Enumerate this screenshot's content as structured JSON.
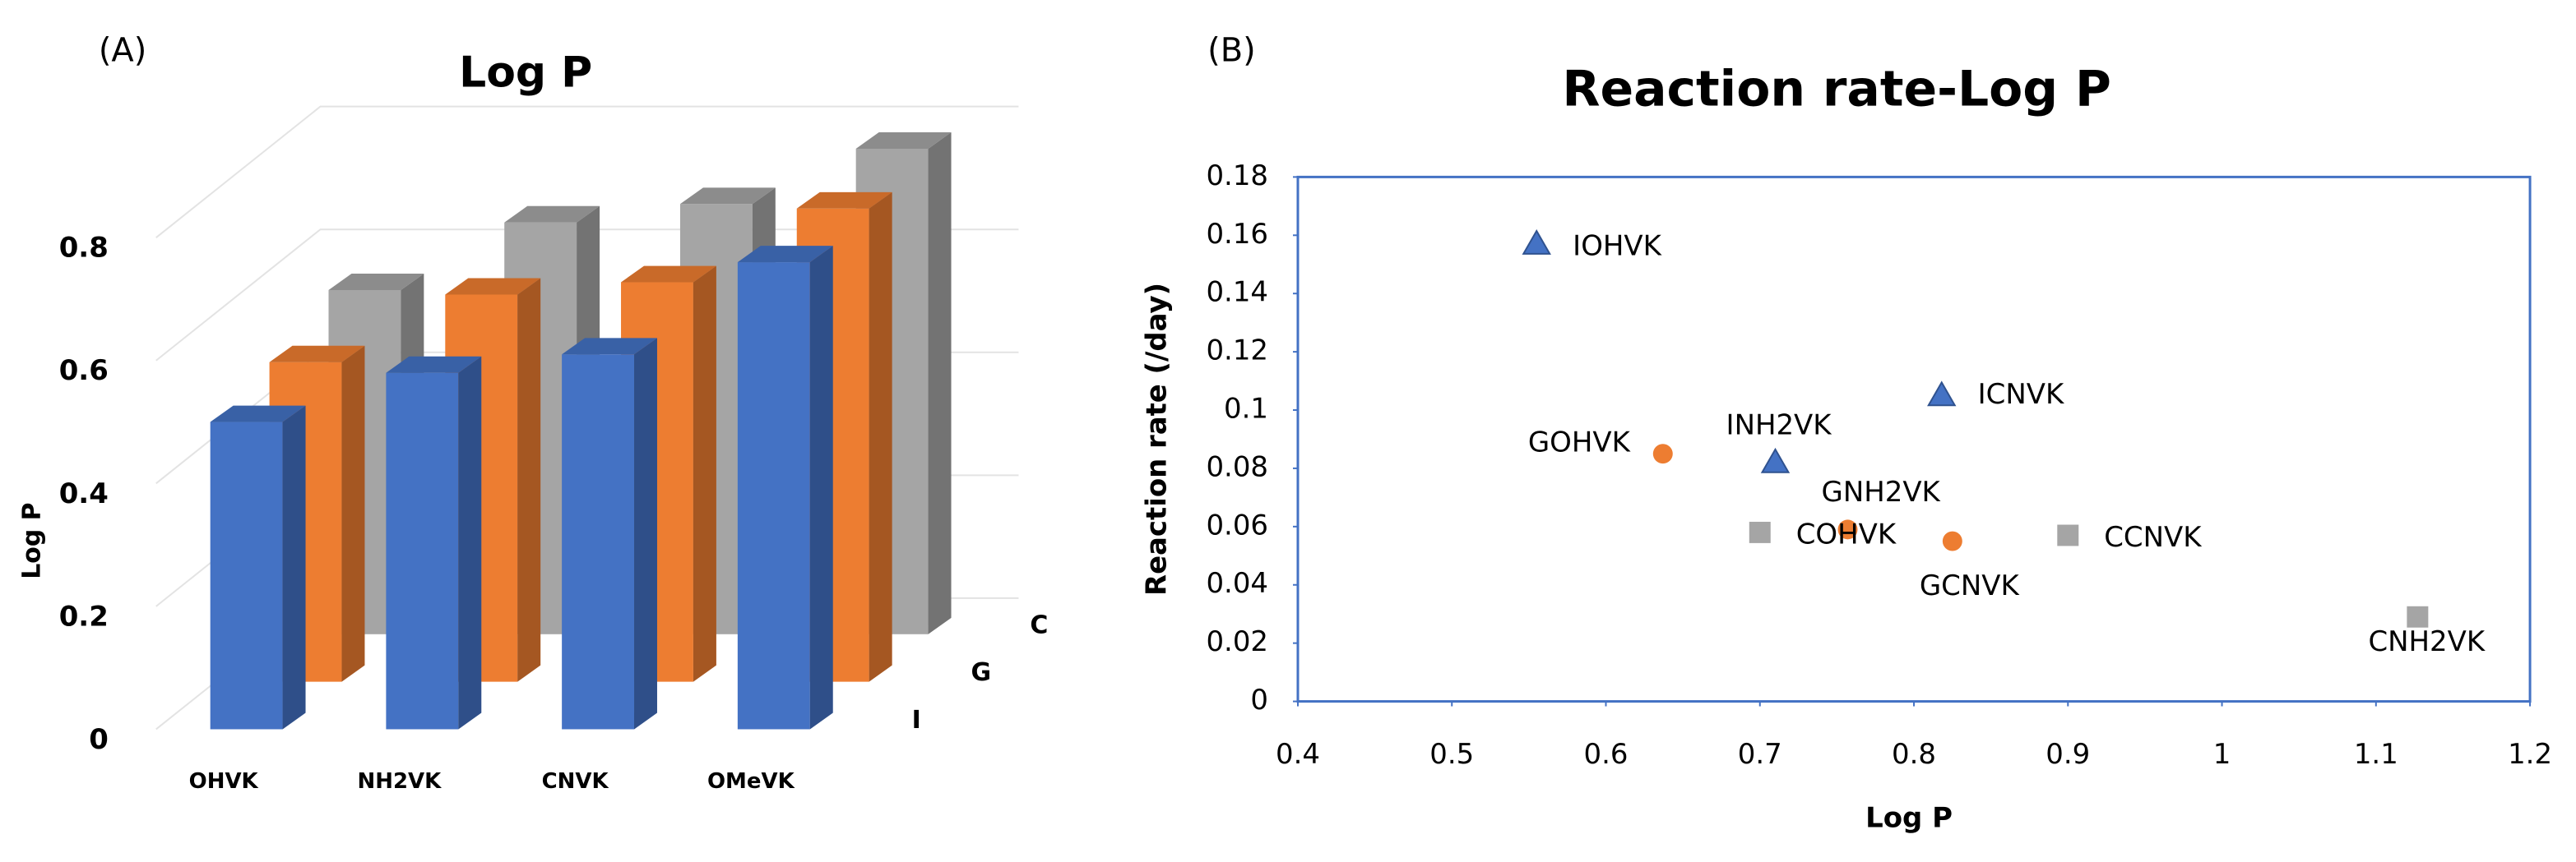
{
  "chart_data": [
    {
      "type": "bar3d",
      "panel": "(A)",
      "title": "Log P",
      "ylabel": "Log P",
      "categories": [
        "OHVK",
        "NH2VK",
        "CNVK",
        "OMeVK"
      ],
      "series": [
        {
          "name": "I",
          "color": "#4472c4",
          "values": [
            0.5,
            0.58,
            0.61,
            0.76
          ]
        },
        {
          "name": "G",
          "color": "#ed7d31",
          "values": [
            0.52,
            0.63,
            0.65,
            0.77
          ]
        },
        {
          "name": "C",
          "color": "#a5a5a5",
          "values": [
            0.56,
            0.67,
            0.7,
            0.79
          ]
        }
      ],
      "ylim": [
        0,
        0.8
      ],
      "yticks": [
        0,
        0.2,
        0.4,
        0.6,
        0.8
      ],
      "grid": true
    },
    {
      "type": "scatter",
      "panel": "(B)",
      "title": "Reaction rate-Log P",
      "xlabel": "Log P",
      "ylabel": "Reaction rate (/day)",
      "series": [
        {
          "name": "I",
          "color": "#4472c4",
          "marker": "triangle",
          "labels": [
            "IOHVK",
            "INH2VK",
            "ICNVK"
          ],
          "x": [
            0.555,
            0.71,
            0.818
          ],
          "values": [
            0.157,
            0.082,
            0.105
          ]
        },
        {
          "name": "G",
          "color": "#ed7d31",
          "marker": "circle",
          "labels": [
            "GOHVK",
            "GNH2VK",
            "GCNVK"
          ],
          "x": [
            0.637,
            0.757,
            0.825
          ],
          "values": [
            0.085,
            0.059,
            0.055
          ]
        },
        {
          "name": "C",
          "color": "#a5a5a5",
          "marker": "square",
          "labels": [
            "COHVK",
            "CCNVK",
            "CNH2VK"
          ],
          "x": [
            0.7,
            0.9,
            1.127
          ],
          "values": [
            0.058,
            0.057,
            0.029
          ]
        }
      ],
      "xlim": [
        0.4,
        1.2
      ],
      "xticks": [
        0.4,
        0.5,
        0.6,
        0.7,
        0.8,
        0.9,
        1,
        1.1,
        1.2
      ],
      "ylim": [
        0,
        0.18
      ],
      "yticks": [
        0,
        0.02,
        0.04,
        0.06,
        0.08,
        0.1,
        0.12,
        0.14,
        0.16,
        0.18
      ]
    }
  ]
}
